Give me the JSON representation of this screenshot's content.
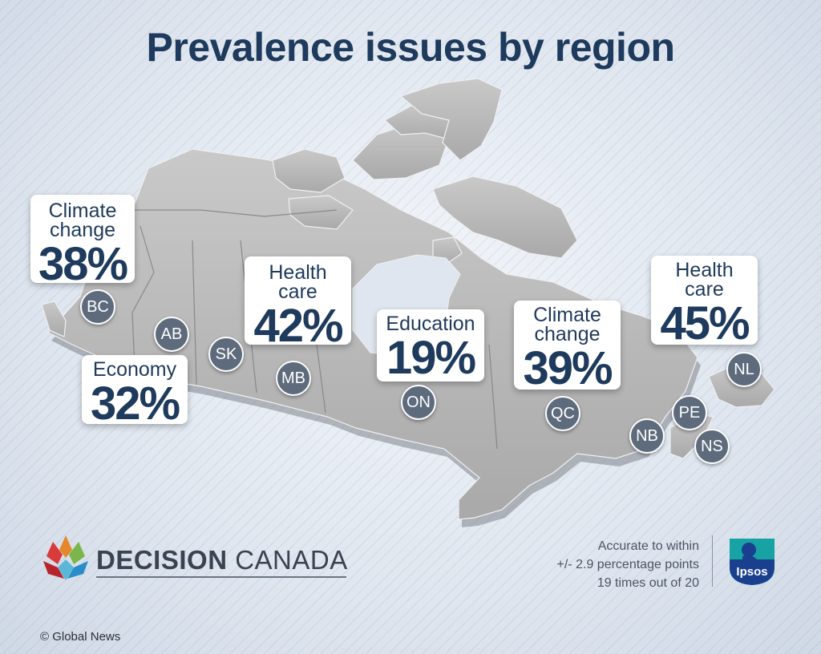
{
  "title": "Prevalence issues by region",
  "regions": {
    "bc": {
      "code": "BC",
      "issue": "Climate\nchange",
      "percent": "38%"
    },
    "ab": {
      "code": "AB",
      "issue": "Economy",
      "percent": "32%"
    },
    "sk": {
      "code": "SK"
    },
    "mb": {
      "code": "MB",
      "issue": "Health\ncare",
      "percent": "42%"
    },
    "on": {
      "code": "ON",
      "issue": "Education",
      "percent": "19%"
    },
    "qc": {
      "code": "QC",
      "issue": "Climate\nchange",
      "percent": "39%"
    },
    "nl": {
      "code": "NL",
      "issue": "Health\ncare",
      "percent": "45%"
    },
    "nb": {
      "code": "NB"
    },
    "pe": {
      "code": "PE"
    },
    "ns": {
      "code": "NS"
    }
  },
  "brand": {
    "bold": "DECISION",
    "light": " CANADA"
  },
  "accuracy": [
    "Accurate to within",
    "+/- 2.9 percentage points",
    "19 times out of 20"
  ],
  "ipsos_logo": "Ipsos",
  "credit": "© Global News",
  "colors": {
    "text_navy": "#1e3a5c",
    "badge": "#5e6b7c",
    "ipsos_teal": "#17a3a3",
    "ipsos_blue": "#1b3f8f"
  }
}
